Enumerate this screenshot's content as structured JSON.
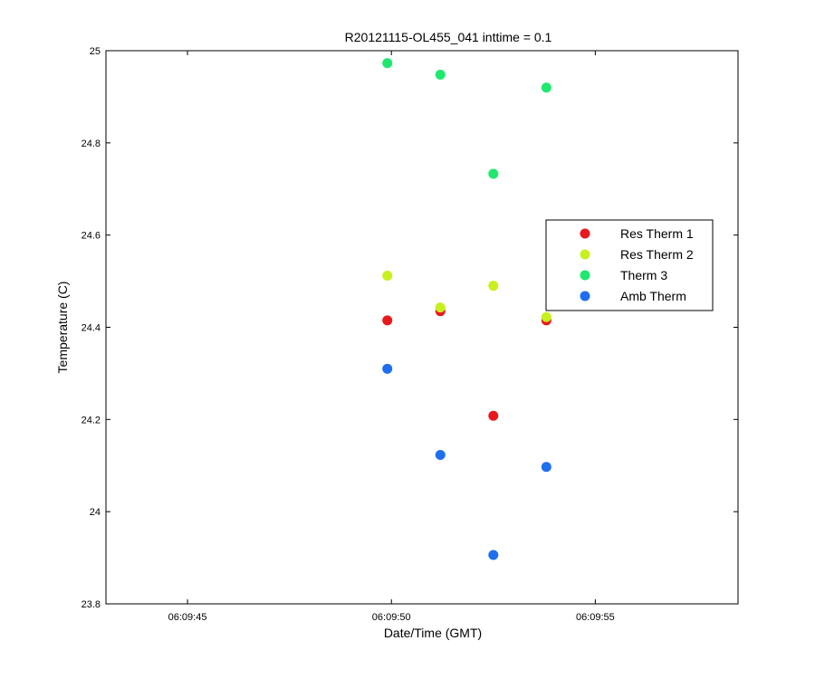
{
  "chart_data": {
    "type": "scatter",
    "title": "R20121115-OL455_041 inttime = 0.1",
    "xlabel": "Date/Time (GMT)",
    "ylabel": "Temperature (C)",
    "x_axis": {
      "unit": "time",
      "range": [
        "06:09:43",
        "06:09:58.5"
      ],
      "ticks": [
        {
          "value": "06:09:45",
          "label": "06:09:45"
        },
        {
          "value": "06:09:50",
          "label": "06:09:50"
        },
        {
          "value": "06:09:55",
          "label": "06:09:55"
        }
      ]
    },
    "y_axis": {
      "range": [
        23.8,
        25.0
      ],
      "ticks": [
        {
          "value": 23.8,
          "label": "23.8"
        },
        {
          "value": 24.0,
          "label": "24"
        },
        {
          "value": 24.2,
          "label": "24.2"
        },
        {
          "value": 24.4,
          "label": "24.4"
        },
        {
          "value": 24.6,
          "label": "24.6"
        },
        {
          "value": 24.8,
          "label": "24.8"
        },
        {
          "value": 25.0,
          "label": "25"
        }
      ]
    },
    "grid": false,
    "legend_position": "right",
    "series": [
      {
        "name": "Res Therm 1",
        "color": "#e8191b",
        "x": [
          "06:09:49.9",
          "06:09:51.2",
          "06:09:52.5",
          "06:09:53.8"
        ],
        "y": [
          24.415,
          24.435,
          24.208,
          24.415
        ]
      },
      {
        "name": "Res Therm 2",
        "color": "#c8f01e",
        "x": [
          "06:09:49.9",
          "06:09:51.2",
          "06:09:52.5",
          "06:09:53.8"
        ],
        "y": [
          24.512,
          24.443,
          24.49,
          24.422
        ]
      },
      {
        "name": "Therm 3",
        "color": "#1ee86e",
        "x": [
          "06:09:49.9",
          "06:09:51.2",
          "06:09:52.5",
          "06:09:53.8"
        ],
        "y": [
          24.973,
          24.948,
          24.733,
          24.92
        ]
      },
      {
        "name": "Amb Therm",
        "color": "#1e6ef0",
        "x": [
          "06:09:49.9",
          "06:09:51.2",
          "06:09:52.5",
          "06:09:53.8"
        ],
        "y": [
          24.31,
          24.123,
          23.906,
          24.097
        ]
      }
    ]
  }
}
